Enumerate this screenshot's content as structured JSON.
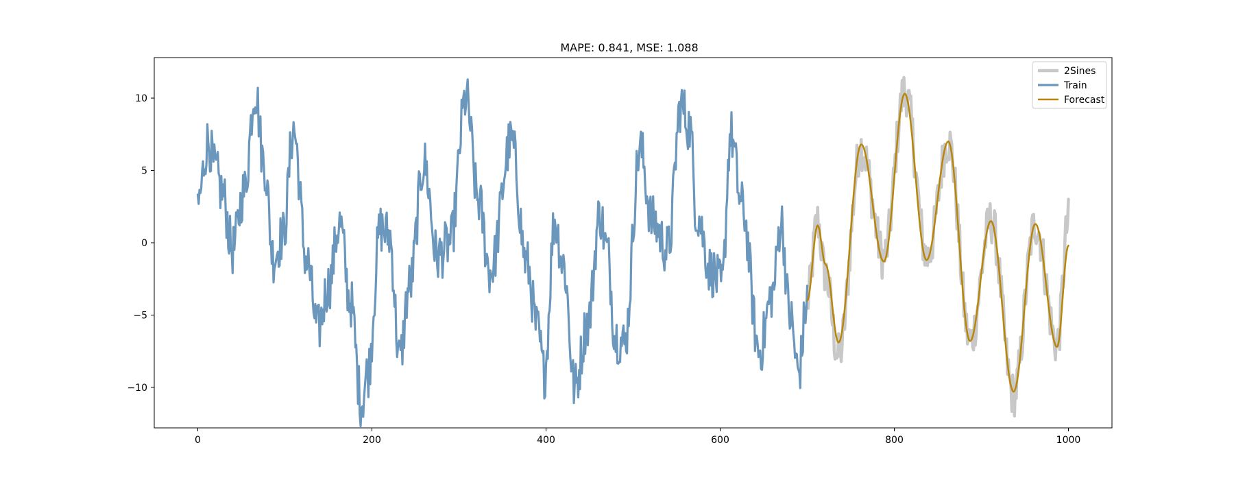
{
  "chart_data": {
    "type": "line",
    "title": "MAPE: 0.841, MSE: 1.088",
    "xlabel": "",
    "ylabel": "",
    "xlim": [
      -50,
      1050
    ],
    "ylim": [
      -12.8,
      12.8
    ],
    "xticks": [
      0,
      200,
      400,
      600,
      800,
      1000
    ],
    "yticks": [
      -10,
      -5,
      0,
      5,
      10
    ],
    "grid": false,
    "legend": {
      "placement": "top-right",
      "entries": [
        "2Sines",
        "Train",
        "Forecast"
      ]
    },
    "colors": {
      "2Sines": "#c8c8c8",
      "Train": "#6b97bd",
      "Forecast": "#b8860b"
    },
    "series": [
      {
        "name": "2Sines",
        "x_range": [
          700,
          1000
        ],
        "key_points": [
          [
            700,
            -4
          ],
          [
            712,
            1.5
          ],
          [
            720,
            -2.0
          ],
          [
            736,
            -7.8
          ],
          [
            762,
            6.6
          ],
          [
            788,
            -1.0
          ],
          [
            812,
            10.5
          ],
          [
            838,
            -1.0
          ],
          [
            862,
            7.0
          ],
          [
            887,
            -6.8
          ],
          [
            911,
            1.5
          ],
          [
            937,
            -10.5
          ],
          [
            962,
            1.3
          ],
          [
            987,
            -7.0
          ],
          [
            1000,
            1.5
          ]
        ]
      },
      {
        "name": "Train",
        "x_range": [
          0,
          700
        ],
        "key_points": [
          [
            0,
            2.7
          ],
          [
            12,
            7.0
          ],
          [
            20,
            5.0
          ],
          [
            28,
            3.5
          ],
          [
            40,
            -0.5
          ],
          [
            53,
            3.5
          ],
          [
            66,
            10.5
          ],
          [
            76,
            5.5
          ],
          [
            87,
            -1.0
          ],
          [
            98,
            0.5
          ],
          [
            110,
            7.8
          ],
          [
            125,
            -1.2
          ],
          [
            138,
            -6.0
          ],
          [
            150,
            -3.0
          ],
          [
            163,
            1.3
          ],
          [
            175,
            -4.0
          ],
          [
            188,
            -11.0
          ],
          [
            195,
            -9.0
          ],
          [
            210,
            1.0
          ],
          [
            220,
            0.5
          ],
          [
            232,
            -8.0
          ],
          [
            243,
            -3.0
          ],
          [
            260,
            5.5
          ],
          [
            275,
            -1.0
          ],
          [
            290,
            0.0
          ],
          [
            308,
            10.0
          ],
          [
            322,
            3.0
          ],
          [
            336,
            -2.0
          ],
          [
            360,
            7.0
          ],
          [
            378,
            -1.5
          ],
          [
            390,
            -6.0
          ],
          [
            398,
            -9.0
          ],
          [
            410,
            1.5
          ],
          [
            420,
            -1.5
          ],
          [
            433,
            -10.0
          ],
          [
            448,
            -5.5
          ],
          [
            462,
            2.0
          ],
          [
            470,
            -0.5
          ],
          [
            480,
            -6.5
          ],
          [
            490,
            -7.0
          ],
          [
            508,
            6.5
          ],
          [
            522,
            1.5
          ],
          [
            540,
            -0.5
          ],
          [
            555,
            9.5
          ],
          [
            565,
            8.0
          ],
          [
            573,
            2.0
          ],
          [
            590,
            -2.0
          ],
          [
            602,
            -3.0
          ],
          [
            612,
            7.5
          ],
          [
            625,
            2.5
          ],
          [
            645,
            -7.5
          ],
          [
            660,
            -3.5
          ],
          [
            670,
            1.5
          ],
          [
            680,
            -5.0
          ],
          [
            690,
            -9.0
          ],
          [
            700,
            -4.0
          ]
        ]
      },
      {
        "name": "Forecast",
        "x_range": [
          700,
          1000
        ],
        "key_points": [
          [
            700,
            -4
          ],
          [
            712,
            1.2
          ],
          [
            721,
            -1.5
          ],
          [
            736,
            -6.9
          ],
          [
            762,
            6.8
          ],
          [
            788,
            -1.3
          ],
          [
            812,
            10.3
          ],
          [
            837,
            -1.2
          ],
          [
            862,
            7.0
          ],
          [
            887,
            -6.8
          ],
          [
            911,
            1.5
          ],
          [
            937,
            -10.3
          ],
          [
            962,
            1.3
          ],
          [
            987,
            -7.2
          ],
          [
            1000,
            -0.2
          ]
        ]
      }
    ]
  }
}
